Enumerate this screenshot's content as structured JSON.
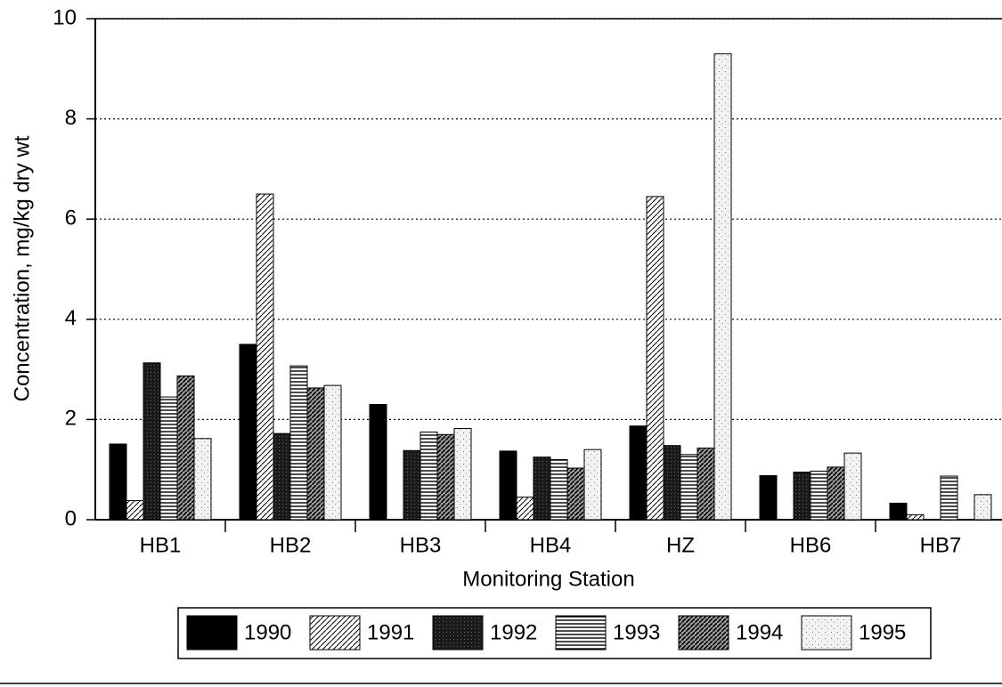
{
  "chart_data": {
    "type": "bar",
    "x_label": "Monitoring Station",
    "y_label": "Concentration, mg/kg dry wt",
    "categories": [
      "HB1",
      "HB2",
      "HB3",
      "HB4",
      "HZ",
      "HB6",
      "HB7"
    ],
    "series": [
      {
        "name": "1990",
        "color": "#000000",
        "values": [
          1.51,
          3.5,
          2.3,
          1.37,
          1.87,
          0.88,
          0.33
        ]
      },
      {
        "name": "1991",
        "color": "#ffffff",
        "values": [
          0.38,
          6.5,
          null,
          0.45,
          6.45,
          null,
          0.1
        ]
      },
      {
        "name": "1992",
        "color": "#1a1a1a",
        "values": [
          3.13,
          1.72,
          1.38,
          1.25,
          1.48,
          0.95,
          null
        ]
      },
      {
        "name": "1993",
        "color": "#ffffff",
        "values": [
          2.45,
          3.07,
          1.75,
          1.2,
          1.3,
          0.97,
          0.87
        ]
      },
      {
        "name": "1994",
        "color": "#9a9a9a",
        "values": [
          2.87,
          2.63,
          1.7,
          1.03,
          1.43,
          1.05,
          null
        ]
      },
      {
        "name": "1995",
        "color": "#f2f2f2",
        "values": [
          1.62,
          2.68,
          1.82,
          1.4,
          9.3,
          1.33,
          0.5
        ]
      }
    ],
    "ylim": [
      0,
      10
    ],
    "yticks": [
      0,
      2,
      4,
      6,
      8,
      10
    ],
    "grid": true,
    "legend": "bottom"
  }
}
